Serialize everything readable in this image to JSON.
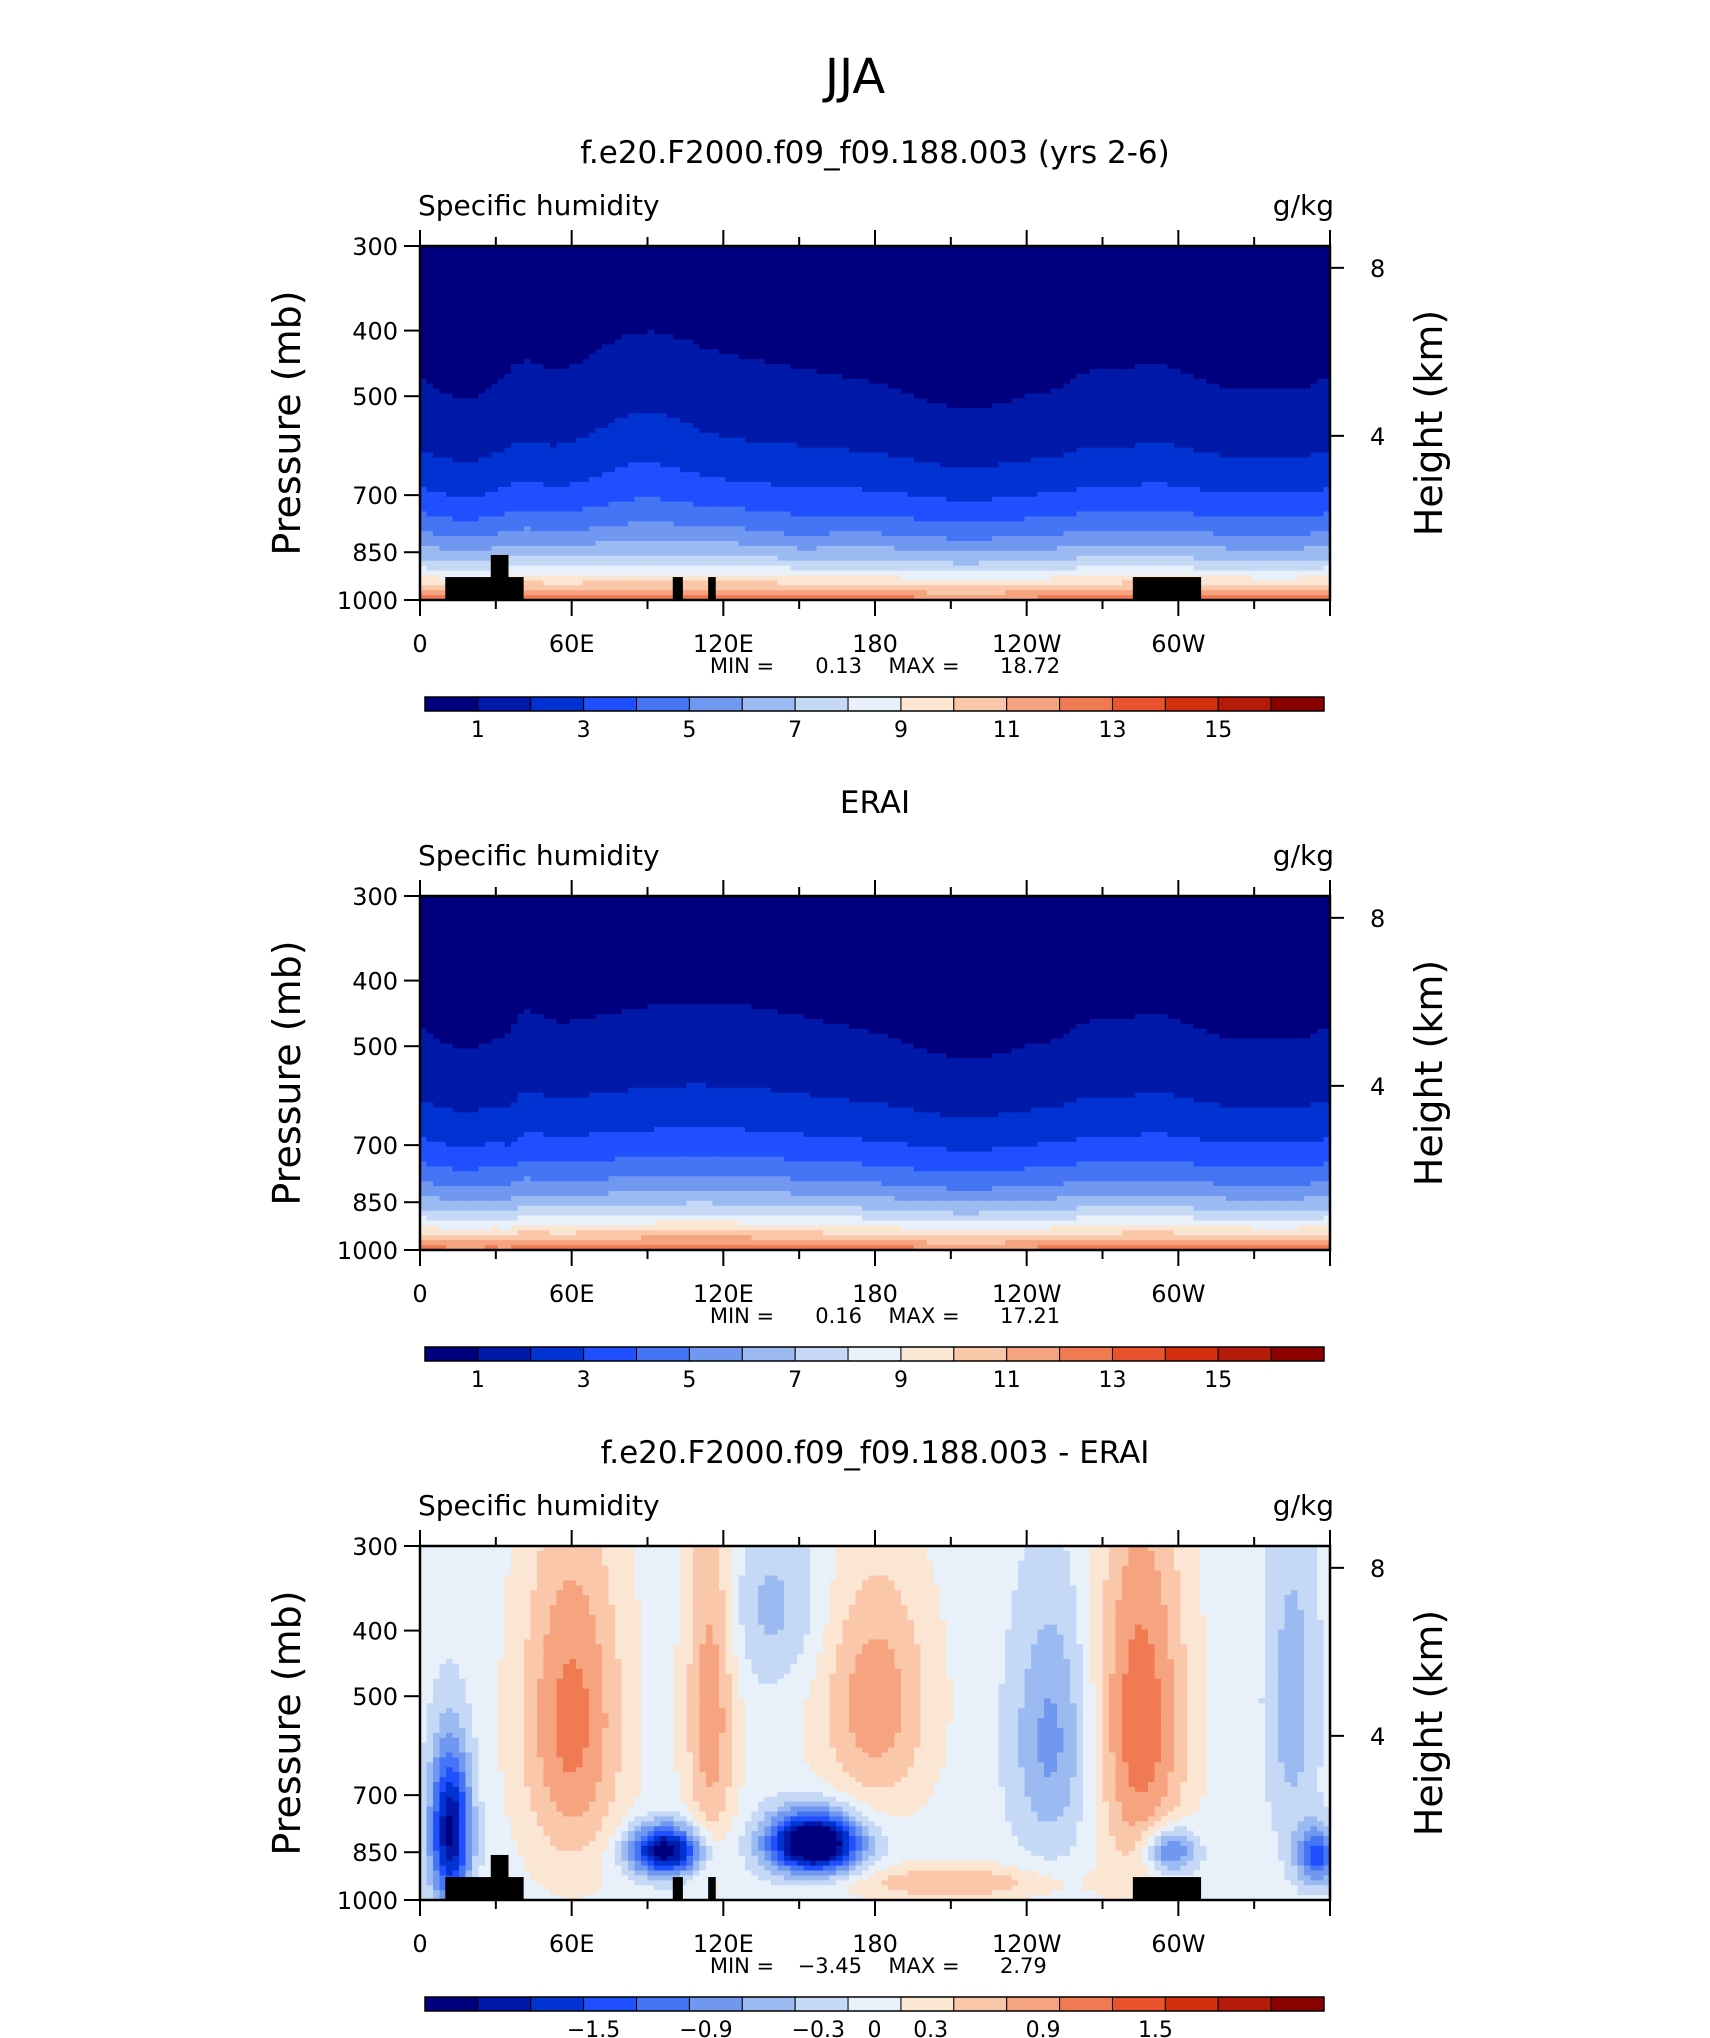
{
  "figure_title": "JJA",
  "chart_data": [
    {
      "type": "heatmap",
      "title": "f.e20.F2000.f09_f09.188.003 (yrs 2-6)",
      "variable": "Specific humidity",
      "units": "g/kg",
      "ylabel": "Pressure (mb)",
      "y2label": "Height (km)",
      "x_ticks": [
        "0",
        "60E",
        "120E",
        "180",
        "120W",
        "60W"
      ],
      "x_range": [
        0,
        360
      ],
      "y_ticks": [
        300,
        400,
        500,
        700,
        850,
        1000
      ],
      "y_range": [
        1000,
        300
      ],
      "y_scale": "log",
      "y2_ticks": [
        8,
        4
      ],
      "stats": {
        "min_label": "MIN =",
        "min": "0.13",
        "max_label": "MAX =",
        "max": "18.72"
      },
      "colorbar": {
        "colors": [
          "#00007f",
          "#0019a8",
          "#0033d2",
          "#1f4fff",
          "#4575f4",
          "#7098f0",
          "#9bbaf2",
          "#c5d8f5",
          "#e8f1fa",
          "#fbe6d4",
          "#fbc7ab",
          "#f6a37f",
          "#f07b53",
          "#e8522d",
          "#d32e0e",
          "#b51b09",
          "#8b0000"
        ],
        "tick_labels": [
          "1",
          "3",
          "5",
          "7",
          "9",
          "11",
          "13",
          "15"
        ],
        "tick_values": [
          1,
          3,
          5,
          7,
          9,
          11,
          13,
          15
        ],
        "min": 0,
        "max": 17
      },
      "field": {
        "mode": "model",
        "mask": true
      }
    },
    {
      "type": "heatmap",
      "title": "ERAI",
      "variable": "Specific humidity",
      "units": "g/kg",
      "ylabel": "Pressure (mb)",
      "y2label": "Height (km)",
      "x_ticks": [
        "0",
        "60E",
        "120E",
        "180",
        "120W",
        "60W"
      ],
      "x_range": [
        0,
        360
      ],
      "y_ticks": [
        300,
        400,
        500,
        700,
        850,
        1000
      ],
      "y_range": [
        1000,
        300
      ],
      "y_scale": "log",
      "y2_ticks": [
        8,
        4
      ],
      "stats": {
        "min_label": "MIN =",
        "min": "0.16",
        "max_label": "MAX =",
        "max": "17.21"
      },
      "colorbar": {
        "colors": [
          "#00007f",
          "#0019a8",
          "#0033d2",
          "#1f4fff",
          "#4575f4",
          "#7098f0",
          "#9bbaf2",
          "#c5d8f5",
          "#e8f1fa",
          "#fbe6d4",
          "#fbc7ab",
          "#f6a37f",
          "#f07b53",
          "#e8522d",
          "#d32e0e",
          "#b51b09",
          "#8b0000"
        ],
        "tick_labels": [
          "1",
          "3",
          "5",
          "7",
          "9",
          "11",
          "13",
          "15"
        ],
        "tick_values": [
          1,
          3,
          5,
          7,
          9,
          11,
          13,
          15
        ],
        "min": 0,
        "max": 17
      },
      "field": {
        "mode": "obs",
        "mask": false
      }
    },
    {
      "type": "heatmap",
      "title": "f.e20.F2000.f09_f09.188.003 - ERAI",
      "variable": "Specific humidity",
      "units": "g/kg",
      "ylabel": "Pressure (mb)",
      "y2label": "Height (km)",
      "x_ticks": [
        "0",
        "60E",
        "120E",
        "180",
        "120W",
        "60W"
      ],
      "x_range": [
        0,
        360
      ],
      "y_ticks": [
        300,
        400,
        500,
        700,
        850,
        1000
      ],
      "y_range": [
        1000,
        300
      ],
      "y_scale": "log",
      "y2_ticks": [
        8,
        4
      ],
      "stats": {
        "min_label": "MIN =",
        "min": "−3.45",
        "max_label": "MAX =",
        "max": "2.79"
      },
      "colorbar": {
        "colors": [
          "#00007f",
          "#0019a8",
          "#0033d2",
          "#1f4fff",
          "#4575f4",
          "#7098f0",
          "#9bbaf2",
          "#c5d8f5",
          "#e8f1fa",
          "#fbe6d4",
          "#fbc7ab",
          "#f6a37f",
          "#f07b53",
          "#e8522d",
          "#d32e0e",
          "#b51b09",
          "#8b0000"
        ],
        "tick_labels": [
          "−1.5",
          "−0.9",
          "−0.3",
          "0",
          "0.3",
          "0.9",
          "1.5"
        ],
        "tick_values": [
          -1.5,
          -0.9,
          -0.3,
          0,
          0.3,
          0.9,
          1.5
        ],
        "min": -2.4,
        "max": 2.4
      },
      "field": {
        "mode": "diff",
        "mask": true
      }
    }
  ]
}
